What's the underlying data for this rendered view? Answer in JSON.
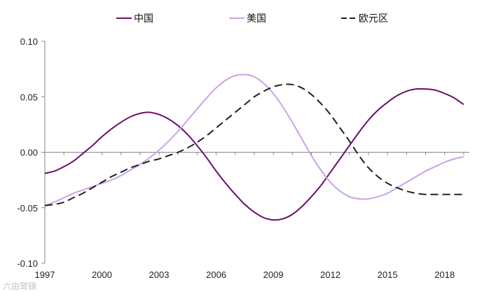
{
  "chart_data": {
    "type": "line",
    "title": "",
    "xlabel": "",
    "ylabel": "",
    "xlim": [
      1997,
      2019.3
    ],
    "ylim": [
      -0.1,
      0.1
    ],
    "x_ticks": [
      1997,
      2000,
      2003,
      2006,
      2009,
      2012,
      2015,
      2018
    ],
    "y_ticks": [
      0.1,
      0.05,
      0.0,
      -0.05,
      -0.1
    ],
    "y_tick_labels": [
      "0.10",
      "0.05",
      "0.00",
      "-0.05",
      "-0.10"
    ],
    "grid": false,
    "legend_position": "top",
    "series": [
      {
        "name": "中国",
        "color": "#6b0f6b",
        "dash": "solid",
        "points": [
          [
            1997,
            -0.019
          ],
          [
            1997.5,
            -0.017
          ],
          [
            1998,
            -0.013
          ],
          [
            1998.5,
            -0.008
          ],
          [
            1999,
            -0.001
          ],
          [
            1999.5,
            0.006
          ],
          [
            2000,
            0.014
          ],
          [
            2000.5,
            0.021
          ],
          [
            2001,
            0.027
          ],
          [
            2001.5,
            0.032
          ],
          [
            2002,
            0.035
          ],
          [
            2002.5,
            0.036
          ],
          [
            2003,
            0.034
          ],
          [
            2003.5,
            0.03
          ],
          [
            2004,
            0.024
          ],
          [
            2004.5,
            0.016
          ],
          [
            2005,
            0.006
          ],
          [
            2005.5,
            -0.005
          ],
          [
            2006,
            -0.017
          ],
          [
            2006.5,
            -0.028
          ],
          [
            2007,
            -0.038
          ],
          [
            2007.5,
            -0.047
          ],
          [
            2008,
            -0.054
          ],
          [
            2008.5,
            -0.059
          ],
          [
            2009,
            -0.061
          ],
          [
            2009.5,
            -0.06
          ],
          [
            2010,
            -0.056
          ],
          [
            2010.5,
            -0.049
          ],
          [
            2011,
            -0.04
          ],
          [
            2011.5,
            -0.03
          ],
          [
            2012,
            -0.018
          ],
          [
            2012.5,
            -0.006
          ],
          [
            2013,
            0.006
          ],
          [
            2013.5,
            0.018
          ],
          [
            2014,
            0.029
          ],
          [
            2014.5,
            0.038
          ],
          [
            2015,
            0.045
          ],
          [
            2015.5,
            0.051
          ],
          [
            2016,
            0.055
          ],
          [
            2016.5,
            0.057
          ],
          [
            2017,
            0.057
          ],
          [
            2017.5,
            0.056
          ],
          [
            2018,
            0.053
          ],
          [
            2018.5,
            0.049
          ],
          [
            2019,
            0.043
          ]
        ]
      },
      {
        "name": "美国",
        "color": "#c9a3e6",
        "dash": "solid",
        "points": [
          [
            1997,
            -0.048
          ],
          [
            1997.5,
            -0.045
          ],
          [
            1998,
            -0.041
          ],
          [
            1998.5,
            -0.037
          ],
          [
            1999,
            -0.034
          ],
          [
            1999.5,
            -0.031
          ],
          [
            2000,
            -0.028
          ],
          [
            2000.5,
            -0.025
          ],
          [
            2001,
            -0.021
          ],
          [
            2001.5,
            -0.016
          ],
          [
            2002,
            -0.011
          ],
          [
            2002.5,
            -0.005
          ],
          [
            2003,
            0.002
          ],
          [
            2003.5,
            0.01
          ],
          [
            2004,
            0.019
          ],
          [
            2004.5,
            0.029
          ],
          [
            2005,
            0.039
          ],
          [
            2005.5,
            0.049
          ],
          [
            2006,
            0.058
          ],
          [
            2006.5,
            0.065
          ],
          [
            2007,
            0.069
          ],
          [
            2007.5,
            0.07
          ],
          [
            2008,
            0.068
          ],
          [
            2008.5,
            0.062
          ],
          [
            2009,
            0.053
          ],
          [
            2009.5,
            0.041
          ],
          [
            2010,
            0.027
          ],
          [
            2010.5,
            0.012
          ],
          [
            2011,
            -0.003
          ],
          [
            2011.5,
            -0.016
          ],
          [
            2012,
            -0.027
          ],
          [
            2012.5,
            -0.035
          ],
          [
            2013,
            -0.04
          ],
          [
            2013.5,
            -0.042
          ],
          [
            2014,
            -0.042
          ],
          [
            2014.5,
            -0.04
          ],
          [
            2015,
            -0.037
          ],
          [
            2015.5,
            -0.032
          ],
          [
            2016,
            -0.027
          ],
          [
            2016.5,
            -0.022
          ],
          [
            2017,
            -0.017
          ],
          [
            2017.5,
            -0.013
          ],
          [
            2018,
            -0.009
          ],
          [
            2018.5,
            -0.006
          ],
          [
            2019,
            -0.004
          ]
        ]
      },
      {
        "name": "欧元区",
        "color": "#222222",
        "dash": "dashed",
        "points": [
          [
            1997,
            -0.048
          ],
          [
            1997.5,
            -0.047
          ],
          [
            1998,
            -0.045
          ],
          [
            1998.5,
            -0.041
          ],
          [
            1999,
            -0.037
          ],
          [
            1999.5,
            -0.032
          ],
          [
            2000,
            -0.027
          ],
          [
            2000.5,
            -0.022
          ],
          [
            2001,
            -0.018
          ],
          [
            2001.5,
            -0.014
          ],
          [
            2002,
            -0.011
          ],
          [
            2002.5,
            -0.008
          ],
          [
            2003,
            -0.006
          ],
          [
            2003.5,
            -0.003
          ],
          [
            2004,
            0.0
          ],
          [
            2004.5,
            0.004
          ],
          [
            2005,
            0.009
          ],
          [
            2005.5,
            0.015
          ],
          [
            2006,
            0.022
          ],
          [
            2006.5,
            0.029
          ],
          [
            2007,
            0.036
          ],
          [
            2007.5,
            0.043
          ],
          [
            2008,
            0.05
          ],
          [
            2008.5,
            0.055
          ],
          [
            2009,
            0.059
          ],
          [
            2009.5,
            0.061
          ],
          [
            2010,
            0.061
          ],
          [
            2010.5,
            0.058
          ],
          [
            2011,
            0.052
          ],
          [
            2011.5,
            0.044
          ],
          [
            2012,
            0.034
          ],
          [
            2012.5,
            0.022
          ],
          [
            2013,
            0.01
          ],
          [
            2013.5,
            -0.003
          ],
          [
            2014,
            -0.014
          ],
          [
            2014.5,
            -0.022
          ],
          [
            2015,
            -0.028
          ],
          [
            2015.5,
            -0.032
          ],
          [
            2016,
            -0.035
          ],
          [
            2016.5,
            -0.037
          ],
          [
            2017,
            -0.038
          ],
          [
            2017.5,
            -0.038
          ],
          [
            2018,
            -0.038
          ],
          [
            2018.5,
            -0.038
          ],
          [
            2019,
            -0.038
          ]
        ]
      }
    ]
  },
  "watermark": "六由鹭镜"
}
